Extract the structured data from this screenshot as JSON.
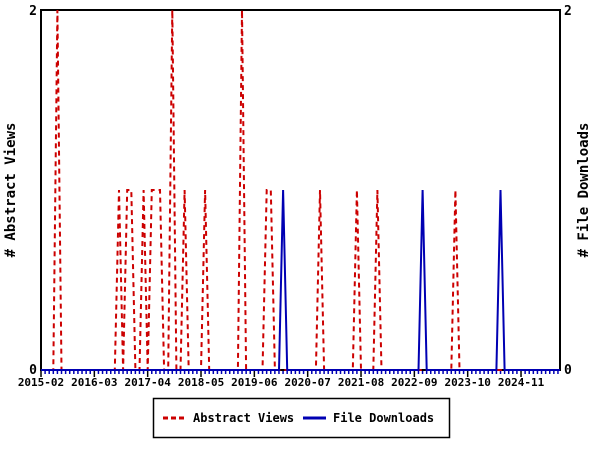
{
  "chart_data": {
    "type": "line",
    "title": "",
    "x_axis": {
      "start_month": "2015-02",
      "months_shown": 126,
      "major_tick_labels": [
        "2015-02",
        "2016-03",
        "2017-04",
        "2018-05",
        "2019-06",
        "2020-07",
        "2021-08",
        "2022-09",
        "2023-10",
        "2024-11"
      ],
      "major_tick_month_indices": [
        0,
        13,
        26,
        39,
        52,
        65,
        78,
        91,
        104,
        117
      ],
      "minor_tick_every_months": 1
    },
    "y_left": {
      "label": "# Abstract Views",
      "range": [
        0,
        2
      ],
      "tick_labels": [
        "0",
        "2"
      ]
    },
    "y_right": {
      "label": "# File Downloads",
      "range": [
        0,
        2
      ],
      "tick_labels": [
        "0",
        "2"
      ]
    },
    "series": [
      {
        "name": "Abstract Views",
        "color": "#cc0000",
        "style": "dashed",
        "points": [
          {
            "month": "2015-06",
            "value": 2
          },
          {
            "month": "2016-09",
            "value": 1
          },
          {
            "month": "2016-11",
            "value": 1
          },
          {
            "month": "2016-12",
            "value": 1
          },
          {
            "month": "2017-03",
            "value": 1
          },
          {
            "month": "2017-05",
            "value": 1
          },
          {
            "month": "2017-06",
            "value": 1
          },
          {
            "month": "2017-07",
            "value": 1
          },
          {
            "month": "2017-10",
            "value": 2
          },
          {
            "month": "2018-01",
            "value": 1
          },
          {
            "month": "2018-06",
            "value": 1
          },
          {
            "month": "2019-03",
            "value": 2
          },
          {
            "month": "2019-09",
            "value": 1
          },
          {
            "month": "2019-10",
            "value": 1
          },
          {
            "month": "2020-10",
            "value": 1
          },
          {
            "month": "2021-07",
            "value": 1
          },
          {
            "month": "2021-12",
            "value": 1
          },
          {
            "month": "2023-07",
            "value": 1
          }
        ]
      },
      {
        "name": "File Downloads",
        "color": "#0000b3",
        "style": "solid",
        "points": [
          {
            "month": "2020-01",
            "value": 1
          },
          {
            "month": "2022-11",
            "value": 1
          },
          {
            "month": "2024-06",
            "value": 1
          }
        ]
      }
    ],
    "legend": {
      "position": "bottom-center",
      "entries": [
        "Abstract Views",
        "File Downloads"
      ]
    }
  },
  "colors": {
    "frame": "#000000",
    "background": "#ffffff",
    "abstract_views": "#cc0000",
    "file_downloads": "#0000b3"
  }
}
